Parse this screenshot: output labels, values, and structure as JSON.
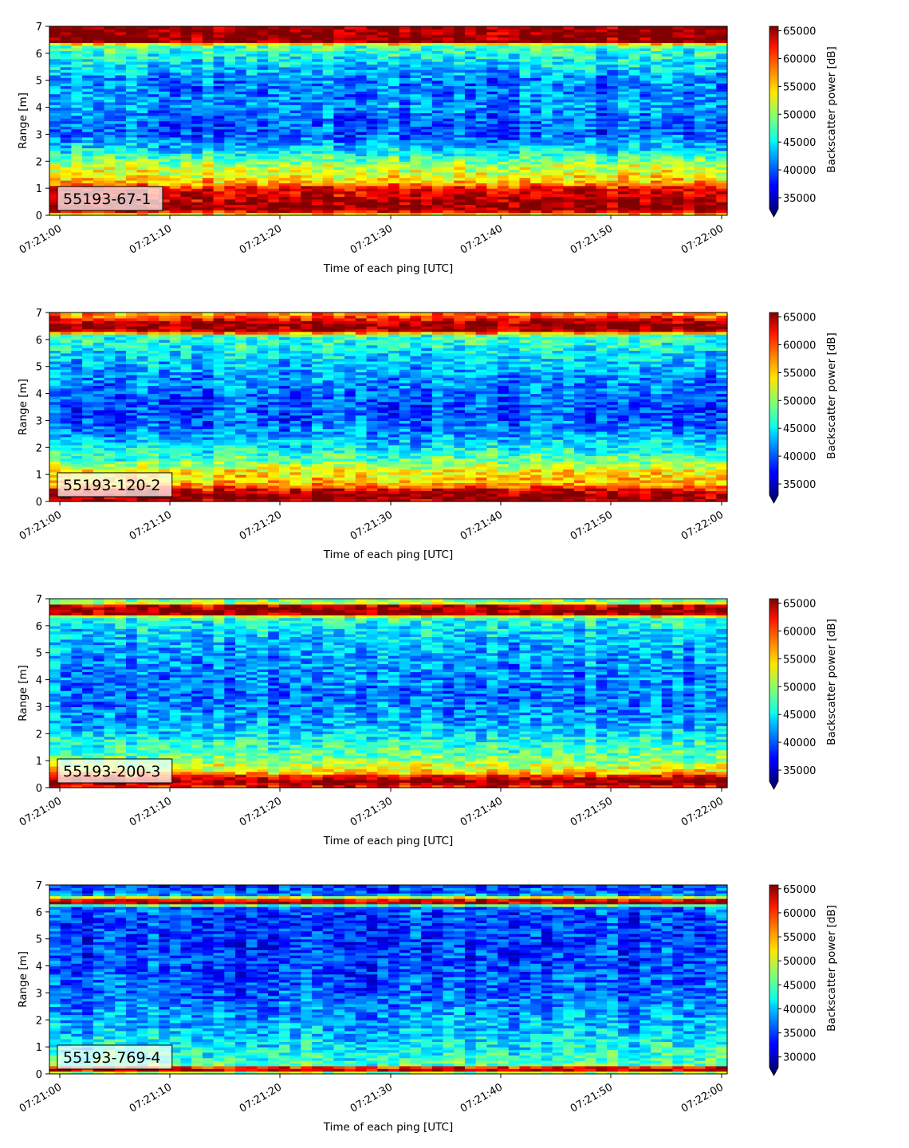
{
  "chart_data": [
    {
      "type": "heatmap",
      "panel_label": "55193-67-1",
      "xlabel": "Time of each ping [UTC]",
      "ylabel": "Range [m]",
      "colorbar_label": "Backscatter power [dB]",
      "x_ticks": [
        "07:21:00",
        "07:21:10",
        "07:21:20",
        "07:21:30",
        "07:21:40",
        "07:21:50",
        "07:22:00"
      ],
      "y_ticks": [
        0,
        1,
        2,
        3,
        4,
        5,
        6,
        7
      ],
      "colorbar_ticks": [
        35000,
        40000,
        45000,
        50000,
        55000,
        60000,
        65000
      ],
      "ylim": [
        0,
        7
      ],
      "clim": [
        33000,
        65800
      ],
      "colormap": "jet",
      "colorbar_extend": "min",
      "profile": {
        "range_m": [
          0.0,
          0.2,
          0.3,
          0.5,
          0.8,
          1.0,
          1.2,
          1.5,
          1.8,
          2.0,
          2.3,
          2.6,
          3.0,
          3.5,
          4.0,
          4.5,
          5.0,
          5.5,
          6.0,
          6.3,
          6.45,
          6.55,
          7.0
        ],
        "median_db": [
          51000,
          65500,
          65500,
          64500,
          63000,
          62500,
          56000,
          53000,
          51500,
          49000,
          45500,
          43000,
          40000,
          40000,
          42000,
          41500,
          41000,
          44000,
          46000,
          48500,
          65500,
          65500,
          65500
        ]
      }
    },
    {
      "type": "heatmap",
      "panel_label": "55193-120-2",
      "xlabel": "Time of each ping [UTC]",
      "ylabel": "Range [m]",
      "colorbar_label": "Backscatter power [dB]",
      "x_ticks": [
        "07:21:00",
        "07:21:10",
        "07:21:20",
        "07:21:30",
        "07:21:40",
        "07:21:50",
        "07:22:00"
      ],
      "y_ticks": [
        0,
        1,
        2,
        3,
        4,
        5,
        6,
        7
      ],
      "colorbar_ticks": [
        35000,
        40000,
        45000,
        50000,
        55000,
        60000,
        65000
      ],
      "ylim": [
        0,
        7
      ],
      "clim": [
        33000,
        65800
      ],
      "colormap": "jet",
      "colorbar_extend": "min",
      "profile": {
        "range_m": [
          0.0,
          0.2,
          0.4,
          0.6,
          0.9,
          1.2,
          1.5,
          2.0,
          2.5,
          3.0,
          3.5,
          4.0,
          4.5,
          5.0,
          5.5,
          6.0,
          6.2,
          6.3,
          6.6,
          6.75,
          6.9,
          7.0
        ],
        "median_db": [
          64000,
          65500,
          63500,
          57000,
          54500,
          53000,
          48500,
          45000,
          42000,
          40000,
          39500,
          40500,
          41500,
          43000,
          44500,
          46500,
          48000,
          64500,
          65500,
          62000,
          58000,
          56000
        ]
      }
    },
    {
      "type": "heatmap",
      "panel_label": "55193-200-3",
      "xlabel": "Time of each ping [UTC]",
      "ylabel": "Range [m]",
      "colorbar_label": "Backscatter power [dB]",
      "x_ticks": [
        "07:21:00",
        "07:21:10",
        "07:21:20",
        "07:21:30",
        "07:21:40",
        "07:21:50",
        "07:22:00"
      ],
      "y_ticks": [
        0,
        1,
        2,
        3,
        4,
        5,
        6,
        7
      ],
      "colorbar_ticks": [
        35000,
        40000,
        45000,
        50000,
        55000,
        60000,
        65000
      ],
      "ylim": [
        0,
        7
      ],
      "clim": [
        33000,
        65800
      ],
      "colormap": "jet",
      "colorbar_extend": "min",
      "profile": {
        "range_m": [
          0.0,
          0.2,
          0.4,
          0.6,
          0.9,
          1.2,
          1.6,
          2.0,
          2.5,
          3.0,
          3.5,
          4.0,
          4.5,
          5.0,
          5.5,
          6.0,
          6.3,
          6.45,
          6.6,
          6.75,
          6.85,
          7.0
        ],
        "median_db": [
          60000,
          65500,
          63000,
          54000,
          51500,
          48500,
          47000,
          44500,
          42500,
          41500,
          41000,
          41500,
          42000,
          42500,
          43500,
          45000,
          47000,
          64500,
          65500,
          63000,
          52000,
          48000
        ]
      }
    },
    {
      "type": "heatmap",
      "panel_label": "55193-769-4",
      "xlabel": "Time of each ping [UTC]",
      "ylabel": "Range [m]",
      "colorbar_label": "Backscatter power [dB]",
      "x_ticks": [
        "07:21:00",
        "07:21:10",
        "07:21:20",
        "07:21:30",
        "07:21:40",
        "07:21:50",
        "07:22:00"
      ],
      "y_ticks": [
        0,
        1,
        2,
        3,
        4,
        5,
        6,
        7
      ],
      "colorbar_ticks": [
        30000,
        35000,
        40000,
        45000,
        50000,
        55000,
        60000,
        65000
      ],
      "ylim": [
        0,
        7
      ],
      "clim": [
        27800,
        65800
      ],
      "colormap": "jet",
      "colorbar_extend": "min",
      "profile": {
        "range_m": [
          0.0,
          0.15,
          0.25,
          0.35,
          0.6,
          1.0,
          1.5,
          2.0,
          2.5,
          3.0,
          4.0,
          5.0,
          5.8,
          6.2,
          6.35,
          6.5,
          6.6,
          6.75,
          7.0
        ],
        "median_db": [
          41000,
          63000,
          60000,
          45000,
          43500,
          42000,
          40000,
          39000,
          37500,
          36000,
          35000,
          34500,
          34500,
          36000,
          64000,
          60000,
          40000,
          36000,
          34000
        ]
      }
    }
  ]
}
